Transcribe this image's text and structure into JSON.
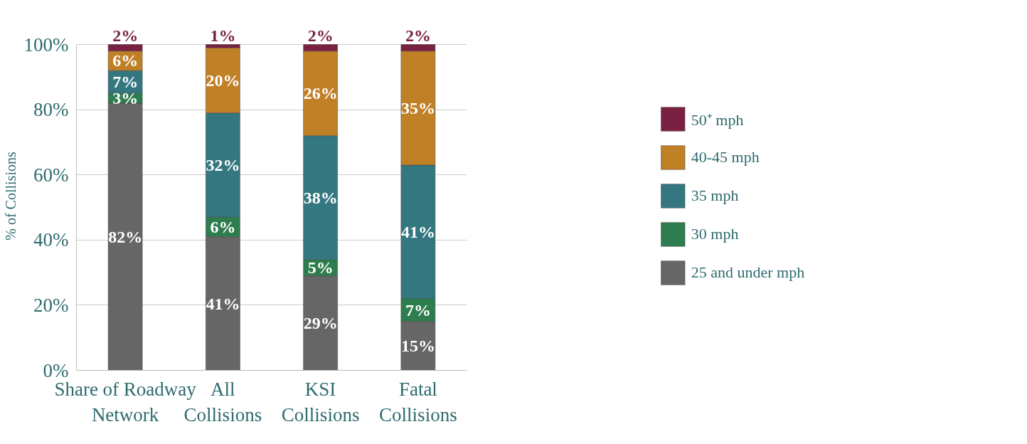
{
  "chart_data": {
    "type": "bar",
    "stacked": true,
    "ylabel": "% of Collisions",
    "categories": [
      "Share of Roadway\nNetwork",
      "All\nCollisions",
      "KSI\nCollisions",
      "Fatal\nCollisions"
    ],
    "series": [
      {
        "name": "25 and under mph",
        "color": "#666666",
        "values": [
          82,
          41,
          29,
          15
        ],
        "value_labels": [
          "82%",
          "41%",
          "29%",
          "15%"
        ]
      },
      {
        "name": "30 mph",
        "color": "#2e7d4f",
        "values": [
          3,
          6,
          5,
          7
        ],
        "value_labels": [
          "3%",
          "6%",
          "5%",
          "7%"
        ]
      },
      {
        "name": "35 mph",
        "color": "#357780",
        "values": [
          7,
          32,
          38,
          41
        ],
        "value_labels": [
          "7%",
          "32%",
          "38%",
          "41%"
        ]
      },
      {
        "name": "40-45 mph",
        "color": "#c08026",
        "values": [
          6,
          20,
          26,
          35
        ],
        "value_labels": [
          "6%",
          "20%",
          "26%",
          "35%"
        ]
      },
      {
        "name": "50⁺ mph",
        "color": "#7a2143",
        "values": [
          2,
          1,
          2,
          2
        ],
        "value_labels": [
          "2%",
          "1%",
          "2%",
          "2%"
        ]
      }
    ],
    "ylim": [
      0,
      100
    ],
    "yticks": [
      {
        "value": 0,
        "label": "0%"
      },
      {
        "value": 20,
        "label": "20%"
      },
      {
        "value": 40,
        "label": "40%"
      },
      {
        "value": 60,
        "label": "60%"
      },
      {
        "value": 80,
        "label": "80%"
      },
      {
        "value": 100,
        "label": "100%"
      }
    ],
    "grid": "y",
    "legend": "right"
  }
}
